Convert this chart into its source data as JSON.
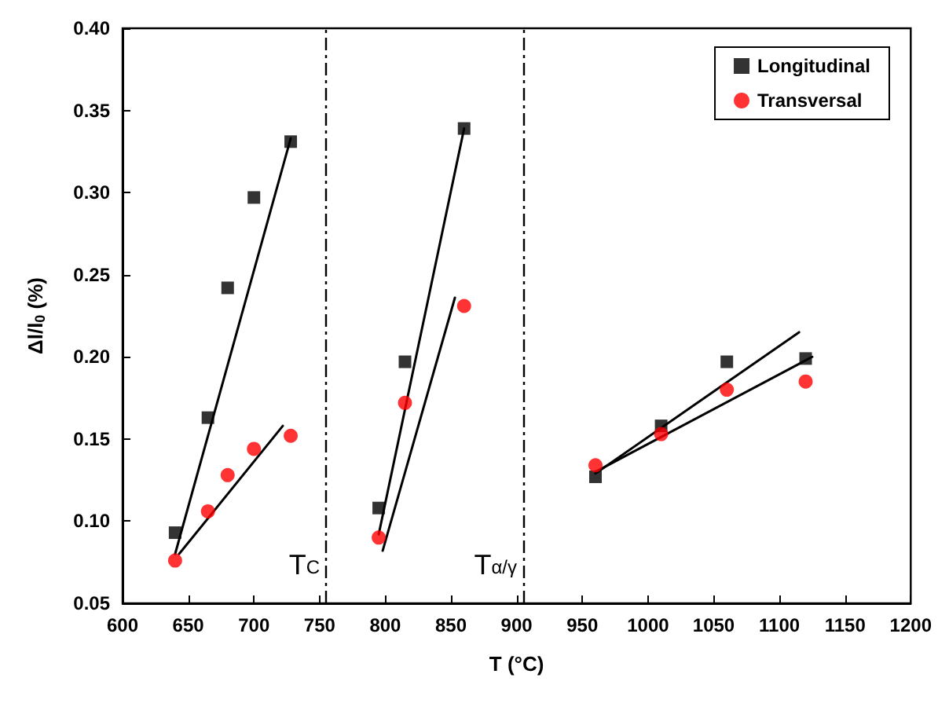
{
  "chart_data": {
    "type": "scatter",
    "xlabel": "T (°C)",
    "ylabel": "Δl/l$_{0}$ (%)",
    "xlim": [
      600,
      1200
    ],
    "xticks": [
      600,
      650,
      700,
      750,
      800,
      850,
      900,
      950,
      1000,
      1050,
      1100,
      1150,
      1200
    ],
    "ylim": [
      0.05,
      0.4
    ],
    "yticks": [
      {
        "value": 0.05,
        "label": "0.05"
      },
      {
        "value": 0.1,
        "label": "0.10"
      },
      {
        "value": 0.15,
        "label": "0.15"
      },
      {
        "value": 0.2,
        "label": "0.20"
      },
      {
        "value": 0.25,
        "label": "0.25"
      },
      {
        "value": 0.3,
        "label": "0.30"
      },
      {
        "value": 0.35,
        "label": "0.35"
      },
      {
        "value": 0.4,
        "label": "0.40"
      }
    ],
    "grid": false,
    "legend": "top right",
    "series": [
      {
        "name": "Longitudinal",
        "marker": "square",
        "color": "#000000",
        "x": [
          640,
          665,
          680,
          700,
          728,
          795,
          815,
          860,
          960,
          1010,
          1060,
          1120
        ],
        "values": [
          0.093,
          0.163,
          0.242,
          0.297,
          0.331,
          0.108,
          0.197,
          0.339,
          0.127,
          0.158,
          0.197,
          0.199
        ]
      },
      {
        "name": "Transversal",
        "marker": "circle",
        "color": "#ff0000",
        "x": [
          640,
          665,
          680,
          700,
          728,
          795,
          815,
          860,
          960,
          1010,
          1060,
          1120
        ],
        "values": [
          0.076,
          0.106,
          0.128,
          0.144,
          0.152,
          0.09,
          0.172,
          0.231,
          0.134,
          0.153,
          0.18,
          0.185
        ]
      },
      {
        "type": "line",
        "marker": "none",
        "line_style": "solid",
        "color": "#000000",
        "x": [
          640,
          728
        ],
        "values": [
          0.08,
          0.333
        ]
      },
      {
        "type": "line",
        "marker": "none",
        "line_style": "solid",
        "color": "#000000",
        "x": [
          643,
          722
        ],
        "values": [
          0.08,
          0.158
        ]
      },
      {
        "type": "line",
        "marker": "none",
        "line_style": "solid",
        "color": "#000000",
        "x": [
          795,
          860
        ],
        "values": [
          0.092,
          0.339
        ]
      },
      {
        "type": "line",
        "marker": "none",
        "line_style": "solid",
        "color": "#000000",
        "x": [
          798,
          853
        ],
        "values": [
          0.082,
          0.236
        ]
      },
      {
        "type": "line",
        "marker": "none",
        "line_style": "solid",
        "color": "#000000",
        "x": [
          960,
          1115
        ],
        "values": [
          0.129,
          0.215
        ]
      },
      {
        "type": "line",
        "marker": "none",
        "line_style": "solid",
        "color": "#000000",
        "x": [
          960,
          1125
        ],
        "values": [
          0.13,
          0.2
        ]
      }
    ],
    "ref_lines": [
      {
        "axis": "x",
        "value": 755,
        "label": "T$_{C}$",
        "line_style": "dashdot",
        "color": "#000000"
      },
      {
        "axis": "x",
        "value": 905,
        "label": "T$_{α/γ}$",
        "line_style": "dashdot",
        "color": "#000000"
      }
    ]
  }
}
